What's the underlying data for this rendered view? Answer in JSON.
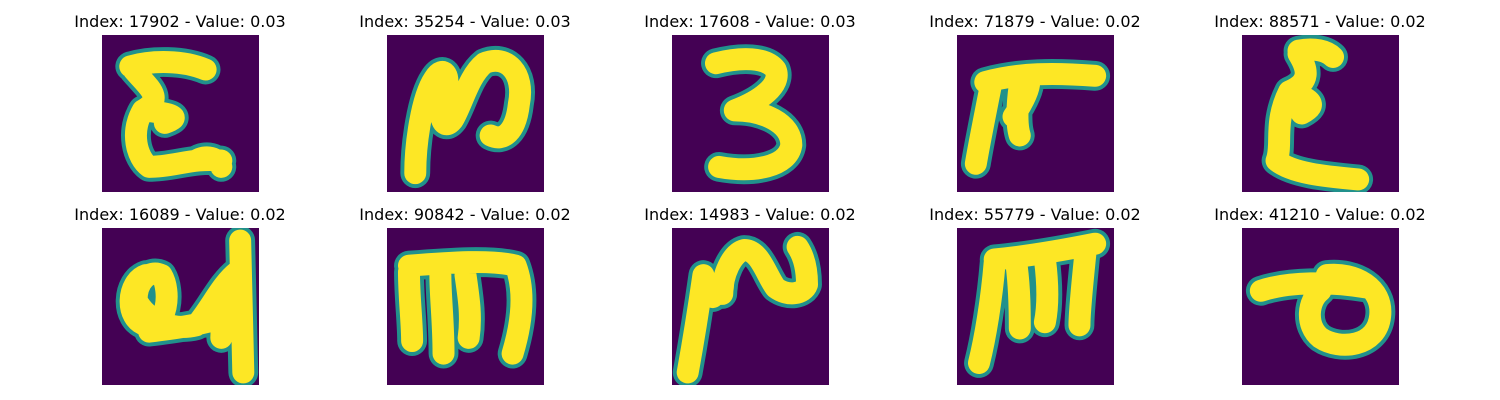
{
  "colors": {
    "background": "#440154",
    "edge": "#21918c",
    "stroke": "#fde725"
  },
  "panels": [
    {
      "title": "Index: 17902 - Value: 0.03",
      "glyph": "sigma-like-E"
    },
    {
      "title": "Index: 35254 - Value: 0.03",
      "glyph": "loop-N"
    },
    {
      "title": "Index: 17608 - Value: 0.03",
      "glyph": "digit-3"
    },
    {
      "title": "Index: 71879 - Value: 0.02",
      "glyph": "flag-shape"
    },
    {
      "title": "Index: 88571 - Value: 0.02",
      "glyph": "sigma-like-E"
    },
    {
      "title": "Index: 16089 - Value: 0.02",
      "glyph": "cursive-scribble"
    },
    {
      "title": "Index: 90842 - Value: 0.02",
      "glyph": "m-shape"
    },
    {
      "title": "Index: 14983 - Value: 0.02",
      "glyph": "wave-N"
    },
    {
      "title": "Index: 55779 - Value: 0.02",
      "glyph": "m-shape"
    },
    {
      "title": "Index: 41210 - Value: 0.02",
      "glyph": "loop-theta"
    }
  ]
}
